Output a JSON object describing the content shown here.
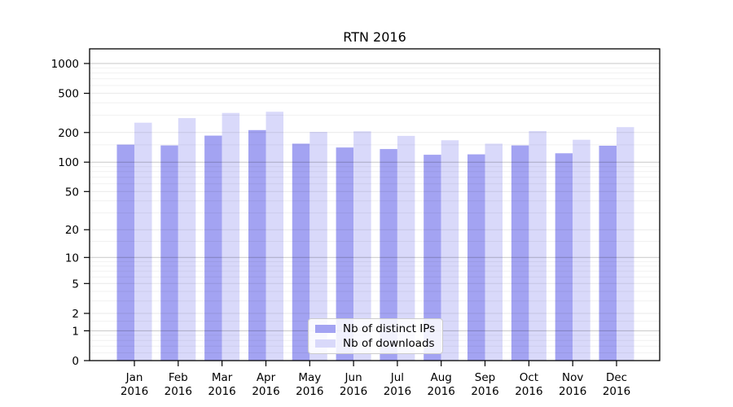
{
  "title": "RTN 2016",
  "chart_data": {
    "type": "bar",
    "title": "RTN 2016",
    "xlabel": "",
    "ylabel": "",
    "yscale": "log(value+1)",
    "ylim": [
      0,
      1405
    ],
    "grid": true,
    "legend_position": "lower center",
    "months": [
      "Jan",
      "Feb",
      "Mar",
      "Apr",
      "May",
      "Jun",
      "Jul",
      "Aug",
      "Sep",
      "Oct",
      "Nov",
      "Dec"
    ],
    "year": "2016",
    "yticks": [
      0,
      1,
      2,
      5,
      10,
      20,
      50,
      100,
      200,
      500,
      1000
    ],
    "yticks_minor": [
      0.2,
      0.4,
      0.6,
      0.8,
      1.5,
      3,
      4,
      6,
      7,
      8,
      9,
      15,
      30,
      40,
      60,
      70,
      80,
      90,
      150,
      300,
      400,
      600,
      700,
      800,
      900
    ],
    "decade_ticks": [
      1,
      10,
      100,
      1000
    ],
    "series": [
      {
        "name": "Nb of distinct IPs",
        "color": "#a3a3f2",
        "values": [
          151,
          148,
          186,
          212,
          154,
          141,
          136,
          119,
          120,
          148,
          123,
          147
        ]
      },
      {
        "name": "Nb of downloads",
        "color": "#d9d9fa",
        "values": [
          252,
          280,
          316,
          325,
          203,
          206,
          185,
          167,
          154,
          207,
          169,
          227
        ]
      }
    ],
    "colors": {
      "grid_decade": "rgba(0,0,0,0.22)",
      "grid_major": "rgba(0,0,0,0.09)",
      "grid_minor": "rgba(0,0,0,0.055)",
      "axis": "#000000",
      "text": "#000000"
    }
  }
}
